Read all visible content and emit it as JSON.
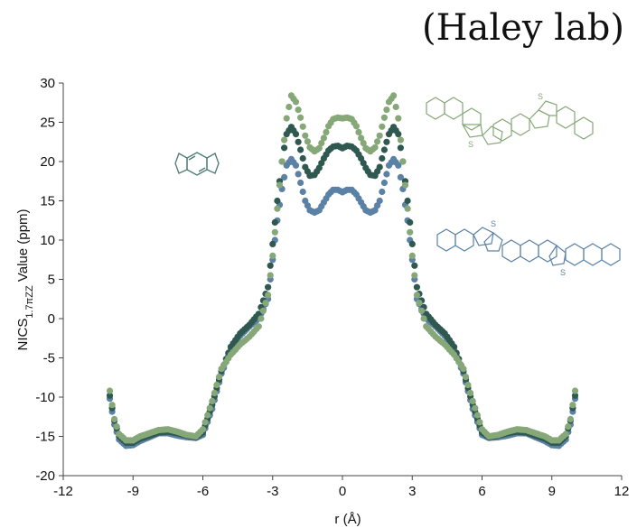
{
  "header": {
    "title": "(Haley lab)"
  },
  "chart_data": {
    "type": "scatter",
    "title": "",
    "xlabel": "r (Å)",
    "ylabel": {
      "base": "NICS",
      "subscript": "1.7πZZ",
      "rest": " Value (ppm)"
    },
    "xlim": [
      -12,
      12
    ],
    "ylim": [
      -20,
      30
    ],
    "xticks": [
      -12,
      -9,
      -6,
      -3,
      0,
      3,
      6,
      9,
      12
    ],
    "yticks": [
      -20,
      -15,
      -10,
      -5,
      0,
      5,
      10,
      15,
      20,
      25,
      30
    ],
    "grid": false,
    "series": [
      {
        "color": "#5b82a6",
        "molecule": "dibenzo-thieno-fused s-indacene (blue structure)",
        "x": [
          -10,
          -9.8,
          -9.6,
          -9.3,
          -9,
          -8.7,
          -8.3,
          -7.9,
          -7.5,
          -7.1,
          -6.7,
          -6.3,
          -6,
          -5.6,
          -5.2,
          -4.8,
          -4.4,
          -4,
          -3.6,
          -3.2,
          -3,
          -2.8,
          -2.6,
          -2.4,
          -2.2,
          -2,
          -1.8,
          -1.6,
          -1.4,
          -1.2,
          -1,
          -0.8,
          -0.6,
          -0.4,
          -0.2,
          0
        ],
        "y": [
          -10.2,
          -13.5,
          -15.4,
          -16.2,
          -16.1,
          -15.6,
          -15.1,
          -14.6,
          -14.6,
          -14.9,
          -15.1,
          -15.2,
          -14.8,
          -11.5,
          -7,
          -4,
          -2.2,
          -1,
          0,
          2.5,
          7.5,
          12.5,
          16.5,
          19.5,
          20.3,
          19.5,
          17.3,
          15,
          13.8,
          13.5,
          13.8,
          14.8,
          15.8,
          16.4,
          16.4,
          16.1
        ]
      },
      {
        "color": "#2f5950",
        "molecule": "s-indacene (small structure)",
        "x": [
          -10,
          -9.8,
          -9.6,
          -9.3,
          -9,
          -8.7,
          -8.3,
          -7.9,
          -7.5,
          -7.1,
          -6.7,
          -6.3,
          -6,
          -5.6,
          -5.2,
          -4.8,
          -4.4,
          -4,
          -3.6,
          -3.2,
          -3,
          -2.8,
          -2.6,
          -2.4,
          -2.2,
          -2,
          -1.8,
          -1.6,
          -1.4,
          -1.2,
          -1,
          -0.8,
          -0.6,
          -0.4,
          -0.2,
          0
        ],
        "y": [
          -9.8,
          -13,
          -15,
          -15.8,
          -15.8,
          -15.3,
          -14.9,
          -14.5,
          -14.4,
          -14.6,
          -14.9,
          -15.1,
          -14.5,
          -11,
          -6.7,
          -3.6,
          -1.9,
          -0.8,
          0.6,
          4,
          9.5,
          15,
          20,
          23.5,
          24.4,
          23.5,
          21.5,
          19.3,
          18.2,
          18.3,
          19.2,
          20.4,
          21.4,
          21.9,
          22,
          21.7
        ]
      },
      {
        "color": "#86a878",
        "molecule": "dibenzo-thieno-fused s-indacene (green structure)",
        "x": [
          -10,
          -9.8,
          -9.6,
          -9.3,
          -9,
          -8.7,
          -8.3,
          -7.9,
          -7.5,
          -7.1,
          -6.7,
          -6.3,
          -6,
          -5.6,
          -5.2,
          -4.8,
          -4.4,
          -4,
          -3.6,
          -3.2,
          -3,
          -2.8,
          -2.6,
          -2.4,
          -2.2,
          -2,
          -1.8,
          -1.6,
          -1.4,
          -1.2,
          -1,
          -0.8,
          -0.6,
          -0.4,
          -0.2,
          0
        ],
        "y": [
          -9.2,
          -12.8,
          -14.7,
          -15.5,
          -15.5,
          -15,
          -14.6,
          -14.2,
          -14.1,
          -14.4,
          -14.8,
          -15,
          -14.1,
          -10.5,
          -6.4,
          -4.6,
          -3.3,
          -2.3,
          -1,
          3,
          8,
          14,
          20,
          25.5,
          28.4,
          27.6,
          25.6,
          23.3,
          21.8,
          21.3,
          21.7,
          23,
          24.5,
          25.4,
          25.6,
          25.5
        ]
      }
    ],
    "symmetric_about_x0": true
  }
}
